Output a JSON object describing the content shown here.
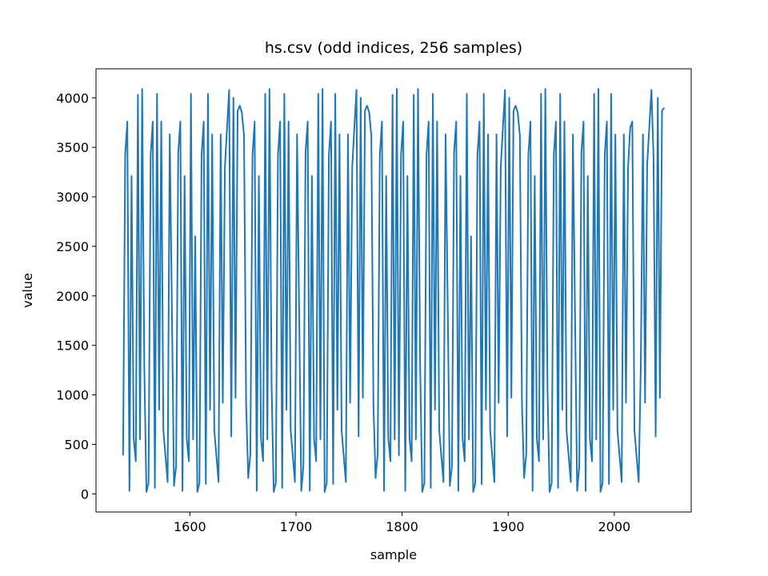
{
  "chart_data": {
    "type": "line",
    "title": "hs.csv (odd indices, 256 samples)",
    "x_label": "sample",
    "y_label": "value",
    "xlim": [
      1511.5,
      2072.5
    ],
    "ylim": [
      -183,
      4293
    ],
    "xticks": [
      1600,
      1700,
      1800,
      1900,
      2000
    ],
    "yticks": [
      0,
      500,
      1000,
      1500,
      2000,
      2500,
      3000,
      3500,
      4000
    ],
    "x": [
      1537,
      1539,
      1541,
      1543,
      1545,
      1547,
      1549,
      1551,
      1553,
      1555,
      1557,
      1559,
      1561,
      1563,
      1565,
      1567,
      1569,
      1571,
      1573,
      1575,
      1577,
      1579,
      1581,
      1583,
      1585,
      1587,
      1589,
      1591,
      1593,
      1595,
      1597,
      1599,
      1601,
      1603,
      1605,
      1607,
      1609,
      1611,
      1613,
      1615,
      1617,
      1619,
      1621,
      1623,
      1625,
      1627,
      1629,
      1631,
      1633,
      1635,
      1637,
      1639,
      1641,
      1643,
      1645,
      1647,
      1649,
      1651,
      1653,
      1655,
      1657,
      1659,
      1661,
      1663,
      1665,
      1667,
      1669,
      1671,
      1673,
      1675,
      1677,
      1679,
      1681,
      1683,
      1685,
      1687,
      1689,
      1691,
      1693,
      1695,
      1697,
      1699,
      1701,
      1703,
      1705,
      1707,
      1709,
      1711,
      1713,
      1715,
      1717,
      1719,
      1721,
      1723,
      1725,
      1727,
      1729,
      1731,
      1733,
      1735,
      1737,
      1739,
      1741,
      1743,
      1745,
      1747,
      1749,
      1751,
      1753,
      1755,
      1757,
      1759,
      1761,
      1763,
      1765,
      1767,
      1769,
      1771,
      1773,
      1775,
      1777,
      1779,
      1781,
      1783,
      1785,
      1787,
      1789,
      1791,
      1793,
      1795,
      1797,
      1799,
      1801,
      1803,
      1805,
      1807,
      1809,
      1811,
      1813,
      1815,
      1817,
      1819,
      1821,
      1823,
      1825,
      1827,
      1829,
      1831,
      1833,
      1835,
      1837,
      1839,
      1841,
      1843,
      1845,
      1847,
      1849,
      1851,
      1853,
      1855,
      1857,
      1859,
      1861,
      1863,
      1865,
      1867,
      1869,
      1871,
      1873,
      1875,
      1877,
      1879,
      1881,
      1883,
      1885,
      1887,
      1889,
      1891,
      1893,
      1895,
      1897,
      1899,
      1901,
      1903,
      1905,
      1907,
      1909,
      1911,
      1913,
      1915,
      1917,
      1919,
      1921,
      1923,
      1925,
      1927,
      1929,
      1931,
      1933,
      1935,
      1937,
      1939,
      1941,
      1943,
      1945,
      1947,
      1949,
      1951,
      1953,
      1955,
      1957,
      1959,
      1961,
      1963,
      1965,
      1967,
      1969,
      1971,
      1973,
      1975,
      1977,
      1979,
      1981,
      1983,
      1985,
      1987,
      1989,
      1991,
      1993,
      1995,
      1997,
      1999,
      2001,
      2003,
      2005,
      2007,
      2009,
      2011,
      2013,
      2015,
      2017,
      2019,
      2021,
      2023,
      2025,
      2027,
      2029,
      2031,
      2033,
      2035,
      2037,
      2039,
      2041,
      2043,
      2045,
      2047
    ],
    "series": [
      {
        "name": "value",
        "color": "#1f77b4",
        "values": [
          390,
          3420,
          3760,
          30,
          3210,
          560,
          330,
          4030,
          550,
          4090,
          1300,
          20,
          110,
          3420,
          3760,
          60,
          4040,
          850,
          3760,
          640,
          380,
          120,
          3630,
          1900,
          80,
          280,
          3450,
          3760,
          30,
          3210,
          560,
          330,
          4040,
          550,
          2600,
          20,
          110,
          3420,
          3760,
          100,
          4040,
          850,
          3630,
          640,
          380,
          120,
          3630,
          920,
          3300,
          3700,
          4080,
          580,
          4000,
          970,
          3870,
          3920,
          3850,
          3620,
          900,
          160,
          400,
          3420,
          3760,
          30,
          3210,
          560,
          330,
          4040,
          550,
          4090,
          1100,
          20,
          110,
          3420,
          3760,
          60,
          4040,
          850,
          3760,
          640,
          380,
          120,
          3630,
          1800,
          30,
          280,
          3450,
          3760,
          30,
          3210,
          560,
          330,
          4040,
          550,
          4090,
          20,
          110,
          3420,
          3760,
          100,
          4040,
          850,
          3630,
          640,
          380,
          120,
          3630,
          920,
          3300,
          3700,
          4080,
          580,
          4000,
          970,
          3870,
          3920,
          3850,
          3620,
          900,
          160,
          400,
          3420,
          3760,
          30,
          3210,
          560,
          330,
          4030,
          550,
          4090,
          390,
          3420,
          3760,
          30,
          3210,
          560,
          330,
          4030,
          550,
          4090,
          1300,
          20,
          110,
          3420,
          3760,
          60,
          4040,
          850,
          3760,
          640,
          380,
          120,
          3630,
          1900,
          80,
          280,
          3450,
          3760,
          30,
          3210,
          560,
          330,
          4040,
          550,
          2600,
          20,
          110,
          3420,
          3760,
          100,
          4040,
          850,
          3630,
          640,
          380,
          120,
          3630,
          920,
          3300,
          3700,
          4080,
          580,
          4000,
          970,
          3870,
          3920,
          3850,
          3620,
          900,
          160,
          400,
          3420,
          3760,
          30,
          3210,
          560,
          330,
          4040,
          550,
          4090,
          1100,
          20,
          110,
          3420,
          3760,
          60,
          4040,
          850,
          3760,
          640,
          380,
          120,
          3630,
          1800,
          30,
          280,
          3450,
          3760,
          30,
          3210,
          560,
          330,
          4040,
          550,
          4090,
          20,
          110,
          3420,
          3760,
          100,
          4040,
          850,
          3630,
          640,
          380,
          120,
          3630,
          920,
          3300,
          3700,
          3760,
          640,
          380,
          120,
          1300,
          3630,
          920,
          3330,
          3700,
          4080,
          3400,
          580,
          4000,
          970,
          3870,
          3900
        ]
      }
    ]
  }
}
